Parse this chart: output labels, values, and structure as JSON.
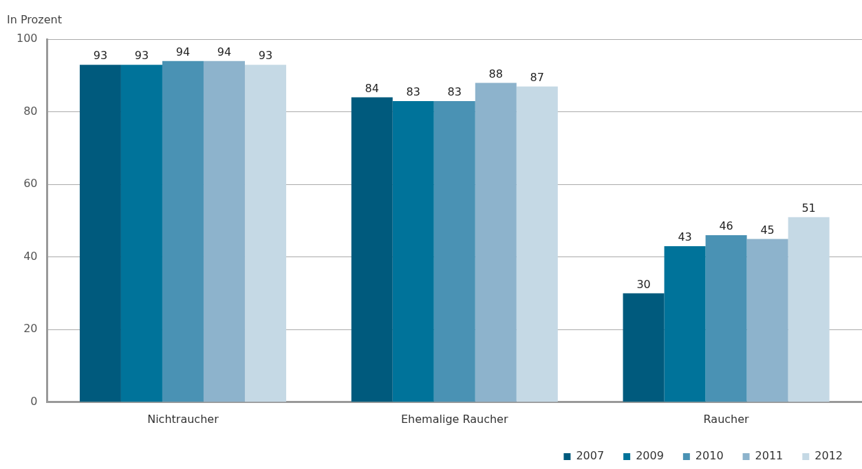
{
  "chart_data": {
    "type": "bar",
    "ylabel": "In Prozent",
    "categories": [
      "Nichtraucher",
      "Ehemalige Raucher",
      "Raucher"
    ],
    "series": [
      {
        "name": "2007",
        "color": "#005a7d",
        "values": [
          93,
          84,
          30
        ]
      },
      {
        "name": "2009",
        "color": "#00739a",
        "values": [
          93,
          83,
          43
        ]
      },
      {
        "name": "2010",
        "color": "#4a92b4",
        "values": [
          94,
          83,
          46
        ]
      },
      {
        "name": "2011",
        "color": "#8db3cc",
        "values": [
          94,
          88,
          45
        ]
      },
      {
        "name": "2012",
        "color": "#c5d9e5",
        "values": [
          93,
          87,
          51
        ]
      }
    ],
    "ylim": [
      0,
      100
    ],
    "yticks": [
      0,
      20,
      40,
      60,
      80,
      100
    ],
    "grid": "y",
    "legend": "bottom right",
    "data_labels": true
  }
}
